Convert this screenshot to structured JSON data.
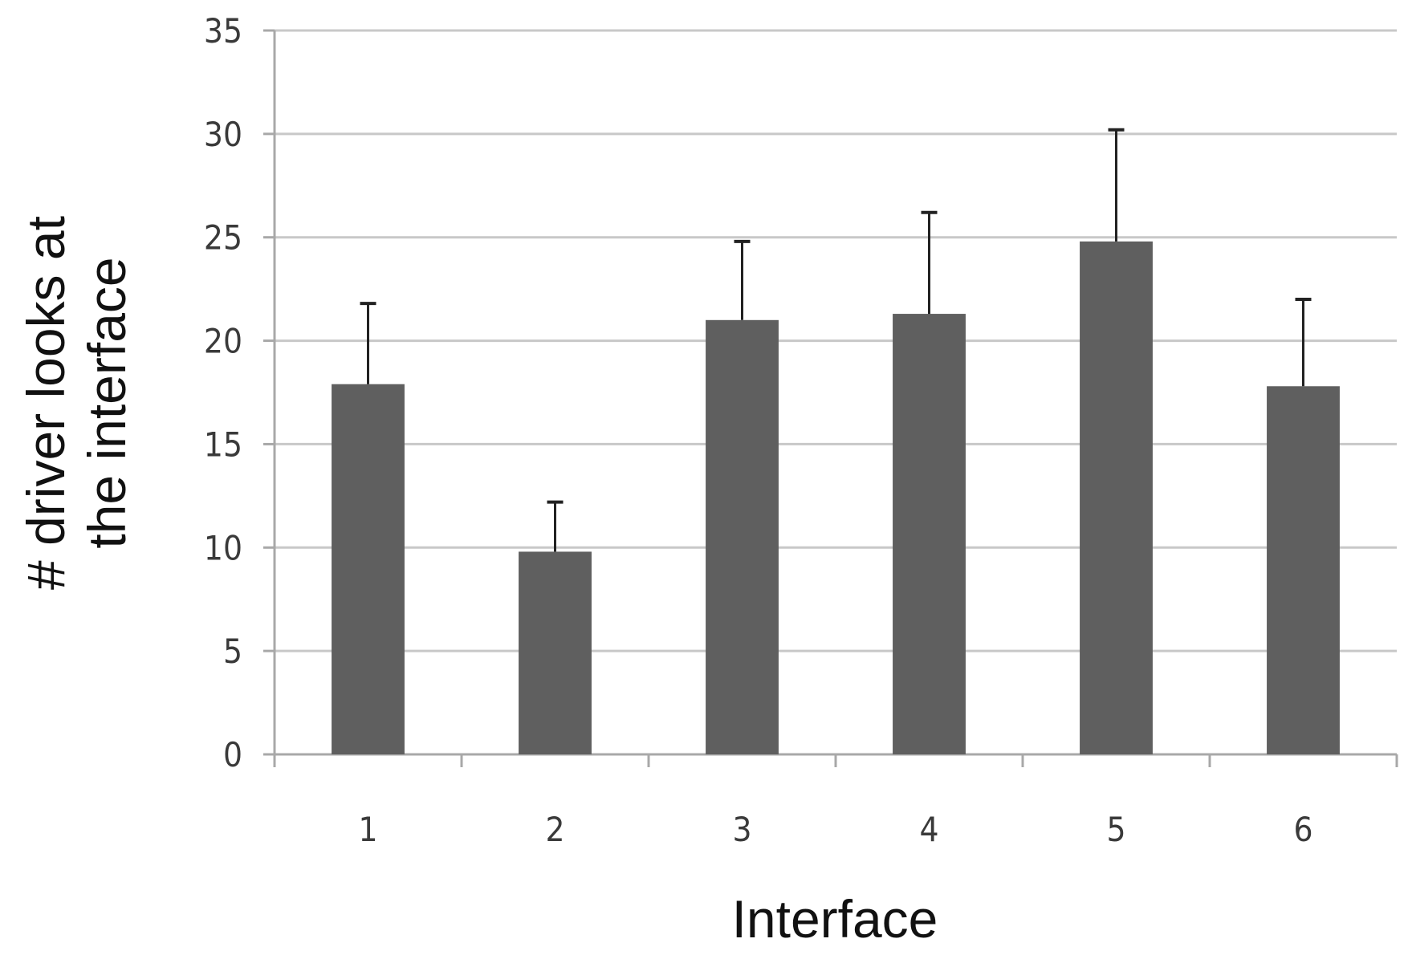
{
  "chart_data": {
    "type": "bar",
    "title": "",
    "xlabel": "Interface",
    "ylabel_lines": [
      "# driver looks at",
      "the interface"
    ],
    "categories": [
      "1",
      "2",
      "3",
      "4",
      "5",
      "6"
    ],
    "values": [
      17.9,
      9.8,
      21.0,
      21.3,
      24.8,
      17.8
    ],
    "error_upper": [
      21.8,
      12.2,
      24.8,
      26.2,
      30.2,
      22.0
    ],
    "ylim": [
      0,
      35
    ],
    "yticks": [
      "0",
      "5",
      "10",
      "15",
      "20",
      "25",
      "30",
      "35"
    ],
    "grid": true,
    "bar_color": "#5f5f5f",
    "grid_color": "#c8c8c8",
    "axis_color": "#a8a8a8",
    "errorbar_color": "#222222"
  }
}
